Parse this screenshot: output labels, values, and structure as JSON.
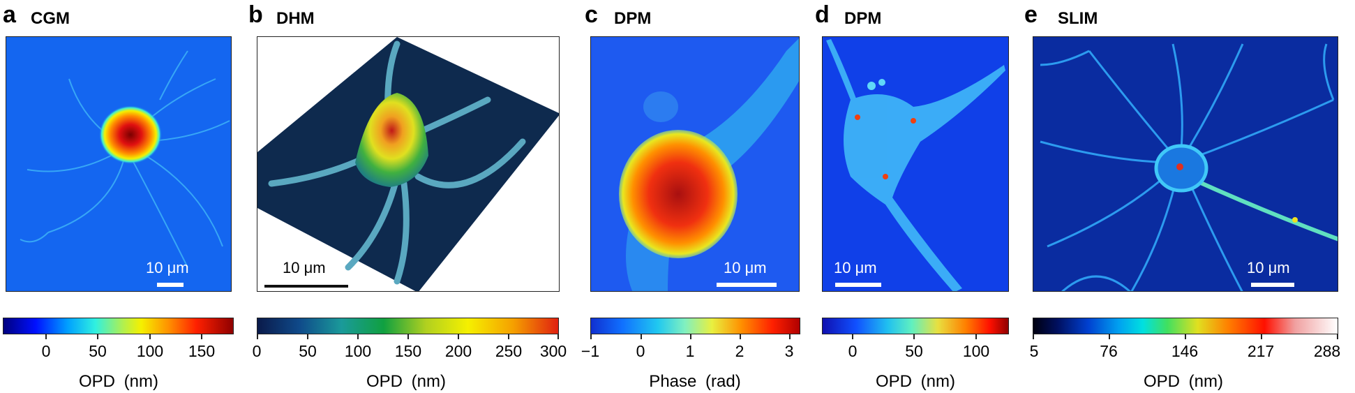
{
  "panels": [
    {
      "letter": "a",
      "method": "CGM",
      "scale_label": "10 μm",
      "colorbar": {
        "ticks": [
          "0",
          "50",
          "100",
          "150"
        ],
        "title": "OPD (nm)"
      }
    },
    {
      "letter": "b",
      "method": "DHM",
      "scale_label": "10 μm",
      "colorbar": {
        "ticks": [
          "0",
          "50",
          "100",
          "150",
          "200",
          "250",
          "300"
        ],
        "title": "OPD (nm)"
      }
    },
    {
      "letter": "c",
      "method": "DPM",
      "scale_label": "10 μm",
      "colorbar": {
        "ticks": [
          "−1",
          "0",
          "1",
          "2",
          "3"
        ],
        "title": "Phase (rad)"
      }
    },
    {
      "letter": "d",
      "method": "DPM",
      "scale_label": "10 μm",
      "colorbar": {
        "ticks": [
          "0",
          "50",
          "100"
        ],
        "title": "OPD (nm)"
      }
    },
    {
      "letter": "e",
      "method": "SLIM",
      "scale_label": "10 μm",
      "colorbar": {
        "ticks": [
          "5",
          "76",
          "146",
          "217",
          "288"
        ],
        "title": "OPD (nm)"
      }
    }
  ],
  "colors": {
    "jet_dark": "#00007f",
    "jet_blue": "#0a4fe0",
    "cyan": "#20e0f0",
    "yellow": "#f5f000",
    "red": "#e01010",
    "dark_red": "#7f0000"
  }
}
